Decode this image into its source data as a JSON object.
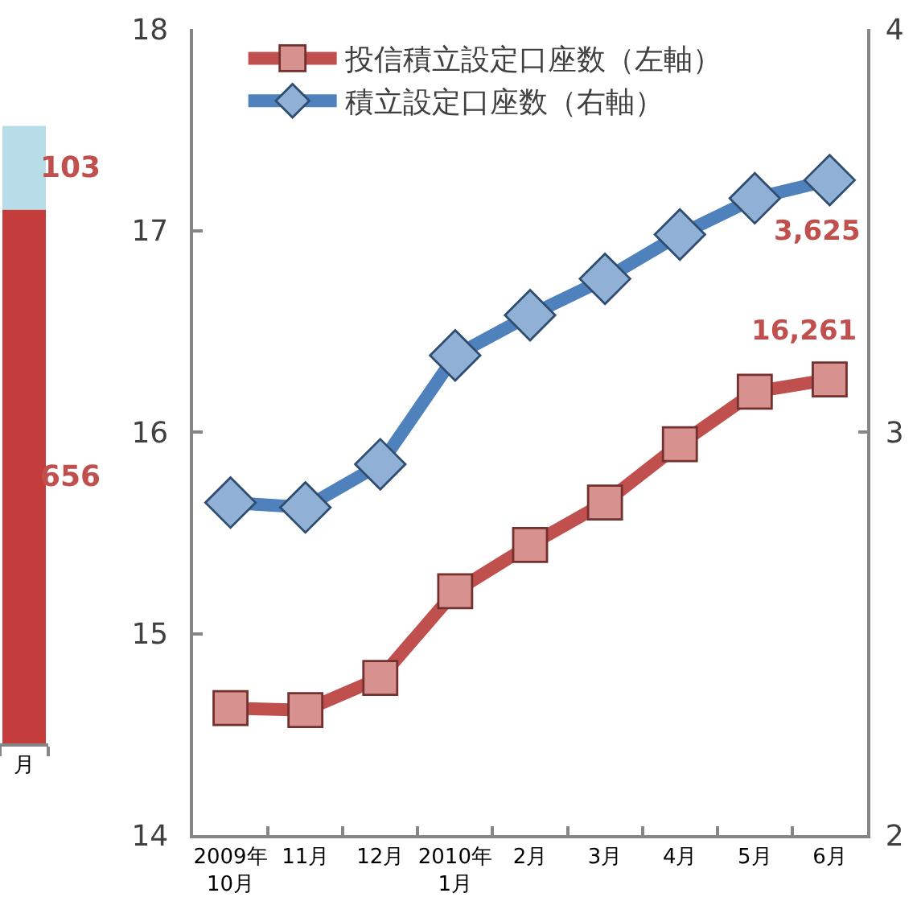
{
  "chart_data": [
    {
      "type": "bar",
      "stacked": true,
      "categories": [
        "月"
      ],
      "series": [
        {
          "color": "#c43c3c",
          "values": [
            656
          ]
        },
        {
          "color": "#b7dde8",
          "values": [
            103
          ]
        }
      ],
      "data_labels": true
    },
    {
      "type": "line",
      "categories": [
        "2009年\n10月",
        "11月",
        "12月",
        "2010年\n1月",
        "2月",
        "3月",
        "4月",
        "5月",
        "6月"
      ],
      "ylim": [
        14,
        18
      ],
      "yticks": [
        14,
        15,
        16,
        17,
        18
      ],
      "y2lim": [
        2,
        4
      ],
      "y2ticks": [
        2,
        3,
        4
      ],
      "series": [
        {
          "name": "投信積立設定口座数（左軸）",
          "color": "#c0504d",
          "marker": "square",
          "values": [
            14.63,
            14.62,
            14.78,
            15.21,
            15.44,
            15.65,
            15.94,
            16.2,
            16.261
          ]
        },
        {
          "name": "積立設定口座数（右軸）",
          "color": "#4f81bd",
          "marker": "diamond",
          "axis": "y2",
          "values": [
            2.825,
            2.813,
            2.92,
            3.19,
            3.29,
            3.38,
            3.49,
            3.58,
            3.625
          ]
        }
      ],
      "annotations": [
        {
          "text": "16,261",
          "x": "6月",
          "y": 16.261
        },
        "3,625"
      ],
      "legend": "top left"
    }
  ]
}
